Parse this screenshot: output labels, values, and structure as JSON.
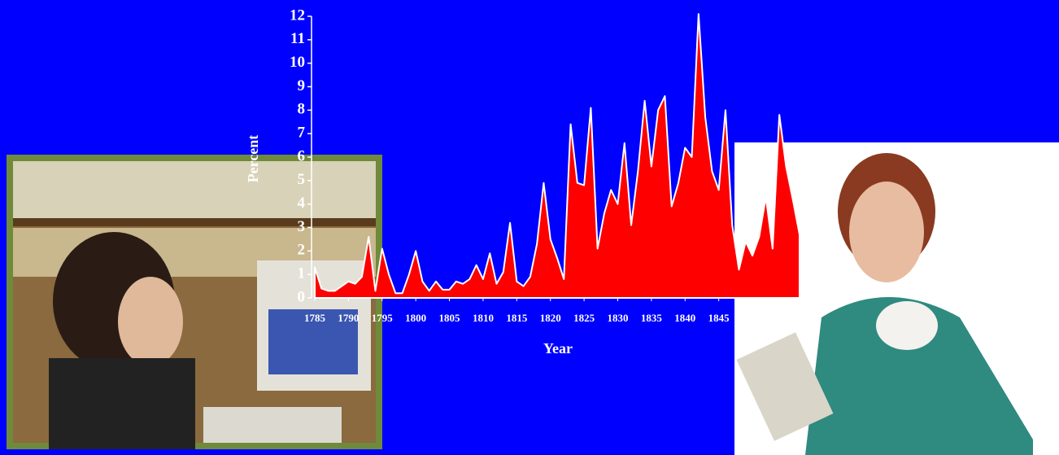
{
  "chart_data": {
    "type": "area",
    "x_label": "Year",
    "y_label": "Percent",
    "color": "#ff0000",
    "x": [
      1785,
      1786,
      1787,
      1788,
      1789,
      1790,
      1791,
      1792,
      1793,
      1794,
      1795,
      1796,
      1797,
      1798,
      1799,
      1800,
      1801,
      1802,
      1803,
      1804,
      1805,
      1806,
      1807,
      1808,
      1809,
      1810,
      1811,
      1812,
      1813,
      1814,
      1815,
      1816,
      1817,
      1818,
      1819,
      1820,
      1821,
      1822,
      1823,
      1824,
      1825,
      1826,
      1827,
      1828,
      1829,
      1830,
      1831,
      1832,
      1833,
      1834,
      1835,
      1836,
      1837,
      1838,
      1839,
      1840,
      1841,
      1842,
      1843,
      1844,
      1845,
      1846,
      1847,
      1848,
      1849,
      1850,
      1851,
      1852,
      1853,
      1854,
      1855,
      1856,
      1857
    ],
    "values": [
      1.3,
      0.4,
      0.3,
      0.3,
      0.5,
      0.7,
      0.6,
      0.9,
      2.6,
      0.3,
      2.1,
      1.0,
      0.2,
      0.2,
      1.0,
      2.0,
      0.7,
      0.3,
      0.7,
      0.35,
      0.35,
      0.7,
      0.6,
      0.8,
      1.4,
      0.8,
      1.9,
      0.6,
      1.1,
      3.2,
      0.7,
      0.5,
      0.9,
      2.3,
      4.9,
      2.5,
      1.7,
      0.8,
      7.4,
      4.9,
      4.8,
      8.1,
      2.1,
      3.6,
      4.6,
      4.0,
      6.6,
      3.1,
      5.4,
      8.4,
      5.6,
      8.0,
      8.6,
      3.9,
      4.9,
      6.4,
      6.0,
      12.1,
      7.7,
      5.4,
      4.6,
      8.0,
      3.1,
      1.2,
      2.4,
      1.8,
      2.6,
      4.3,
      2.1,
      7.8,
      5.6,
      4.2,
      2.7
    ],
    "xlim": [
      1785,
      1857
    ],
    "xticks": [
      1785,
      1790,
      1795,
      1800,
      1805,
      1810,
      1815,
      1820,
      1825,
      1830,
      1835,
      1840,
      1845
    ],
    "ylim": [
      0,
      12
    ],
    "yticks": [
      0,
      1,
      2,
      3,
      4,
      5,
      6,
      7,
      8,
      9,
      10,
      11,
      12
    ]
  }
}
